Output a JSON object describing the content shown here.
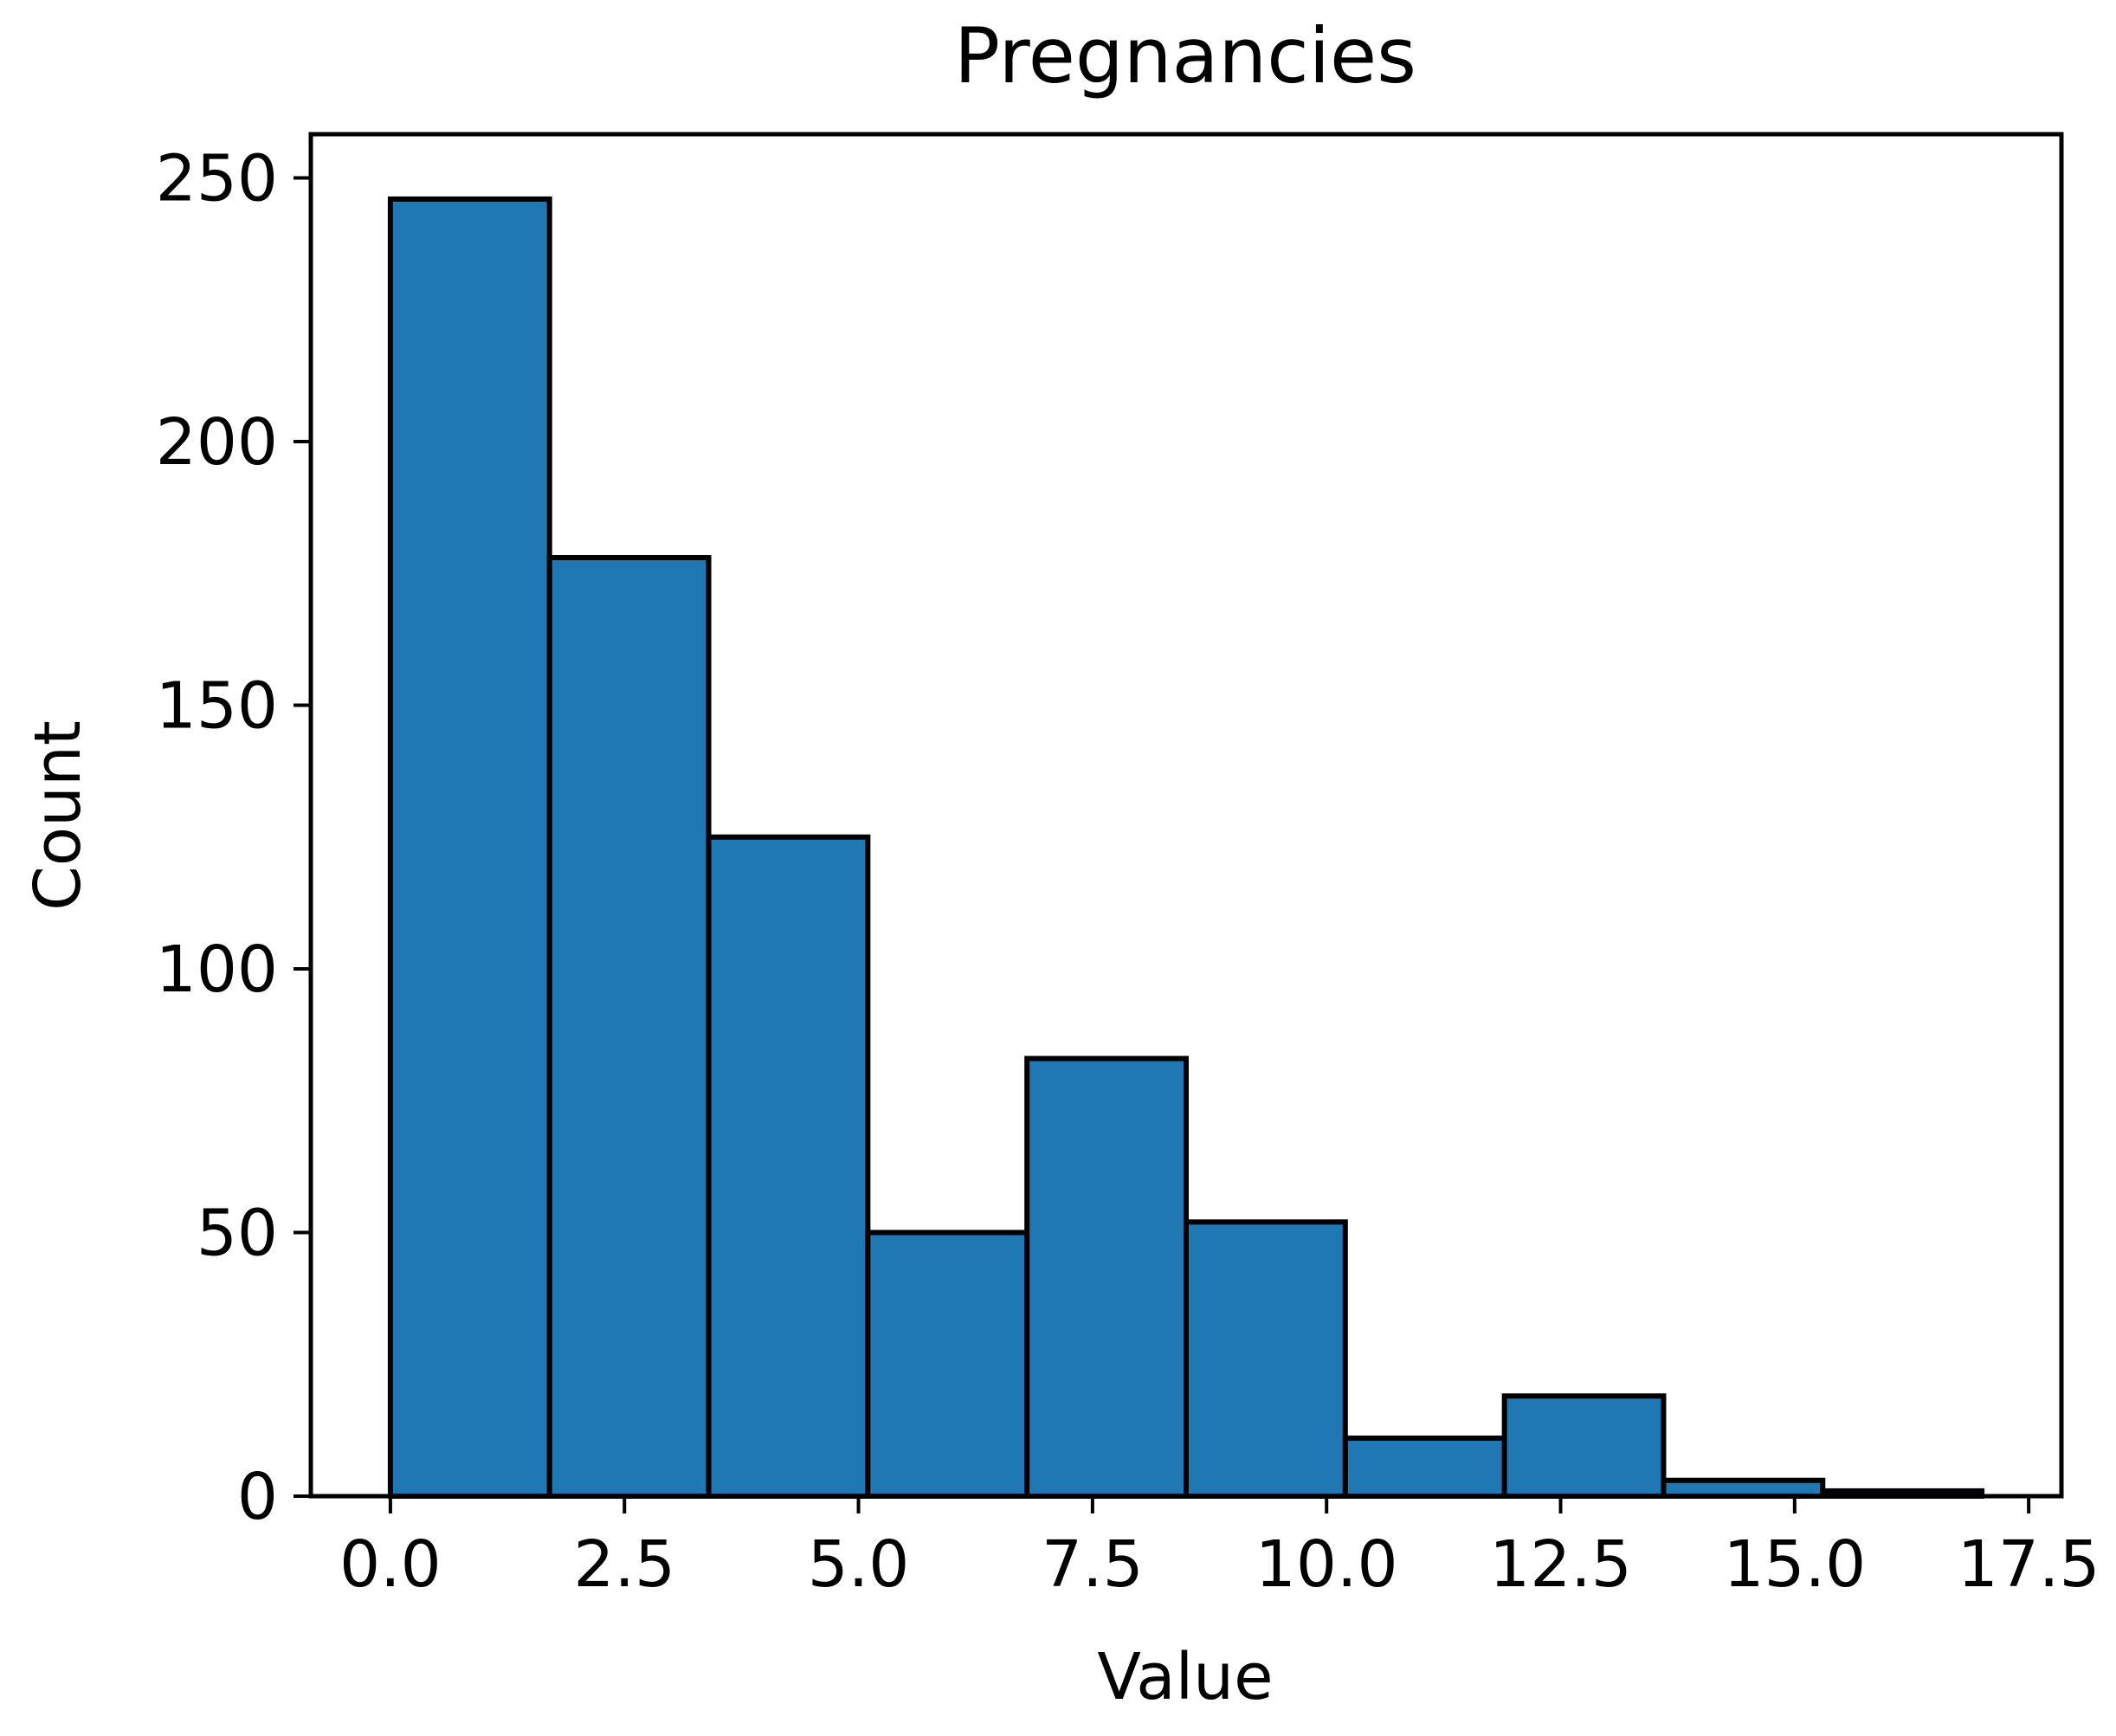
{
  "chart_data": {
    "type": "bar",
    "subtype": "histogram",
    "title": "Pregnancies",
    "xlabel": "Value",
    "ylabel": "Count",
    "bin_edges": [
      0.0,
      1.7,
      3.4,
      5.1,
      6.8,
      8.5,
      10.2,
      11.9,
      13.6,
      15.3,
      17.0
    ],
    "values": [
      246,
      178,
      125,
      50,
      83,
      52,
      11,
      19,
      3,
      1
    ],
    "xlim": [
      -0.85,
      17.85
    ],
    "ylim": [
      0,
      258.3
    ],
    "xticks": [
      0.0,
      2.5,
      5.0,
      7.5,
      10.0,
      12.5,
      15.0,
      17.5
    ],
    "xtick_labels": [
      "0.0",
      "2.5",
      "5.0",
      "7.5",
      "10.0",
      "12.5",
      "15.0",
      "17.5"
    ],
    "yticks": [
      0,
      50,
      100,
      150,
      200,
      250
    ],
    "ytick_labels": [
      "0",
      "50",
      "100",
      "150",
      "200",
      "250"
    ],
    "bar_color": "#1f77b4",
    "edge_color": "#000000",
    "grid": false,
    "legend": null
  }
}
